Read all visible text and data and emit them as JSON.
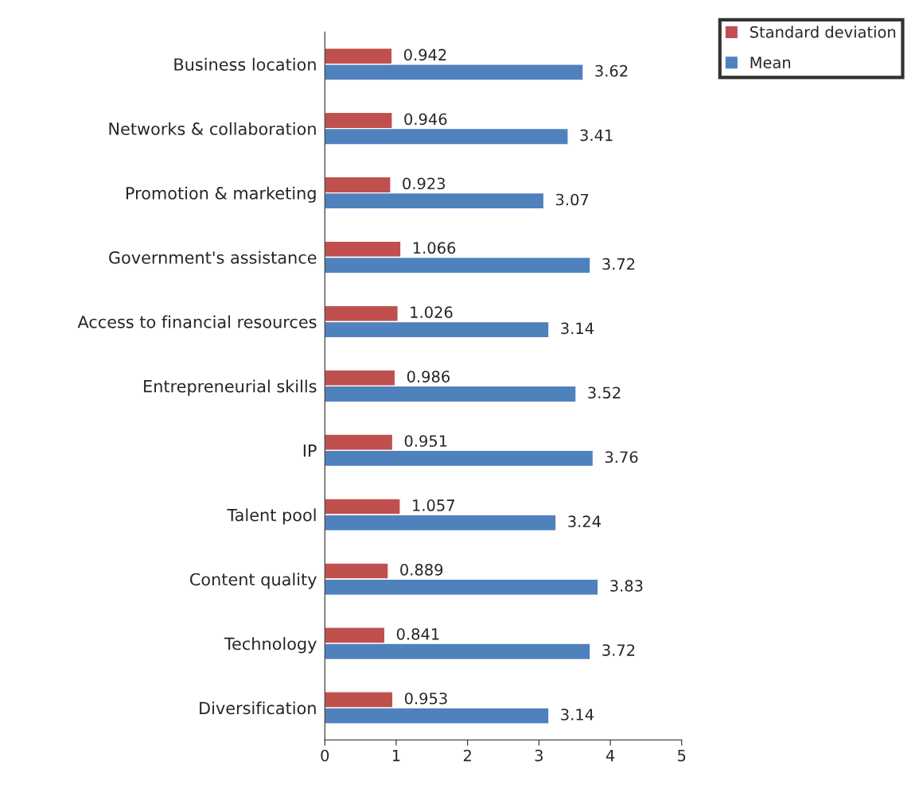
{
  "chart_data": {
    "type": "bar",
    "orientation": "horizontal",
    "categories": [
      "Business location",
      "Networks & collaboration",
      "Promotion & marketing",
      "Government's assistance",
      "Access to financial resources",
      "Entrepreneurial skills",
      "IP",
      "Talent pool",
      "Content quality",
      "Technology",
      "Diversification"
    ],
    "series": [
      {
        "name": "Standard deviation",
        "color": "#c0504d",
        "values": [
          0.942,
          0.946,
          0.923,
          1.066,
          1.026,
          0.986,
          0.951,
          1.057,
          0.889,
          0.841,
          0.953
        ]
      },
      {
        "name": "Mean",
        "color": "#4f81bd",
        "values": [
          3.62,
          3.41,
          3.07,
          3.72,
          3.14,
          3.52,
          3.76,
          3.24,
          3.83,
          3.72,
          3.14
        ]
      }
    ],
    "xlim": [
      0,
      5
    ],
    "xticks": [
      0,
      1,
      2,
      3,
      4,
      5
    ],
    "grid": false,
    "legend": "top right",
    "data_labels": true
  }
}
